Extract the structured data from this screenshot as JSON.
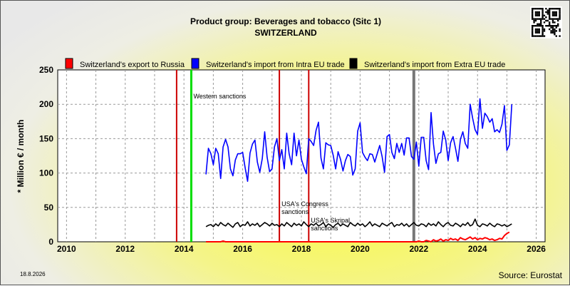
{
  "title": "Product group: Beverages and tobacco (Sitc 1)",
  "subtitle": "SWITZERLAND",
  "date_stamp": "18.8.2026",
  "source": "Source: Eurostat",
  "qr_icon": "qr-code-icon",
  "chart_data": {
    "type": "line",
    "title": "Product group: Beverages and tobacco (Sitc 1)",
    "subtitle": "SWITZERLAND",
    "ylabel": "* Million € / month",
    "xlabel": "",
    "xlim": [
      2009.7,
      2026.3
    ],
    "ylim": [
      0,
      250
    ],
    "x_ticks": [
      2010,
      2012,
      2014,
      2016,
      2018,
      2020,
      2022,
      2024,
      2026
    ],
    "y_ticks": [
      0,
      50,
      100,
      150,
      200,
      250
    ],
    "grid": true,
    "legend_position": "top",
    "series": [
      {
        "name": "Switzerland's export to Russia",
        "color": "#ff0000",
        "x_start": 2014.75,
        "x_step": 0.08333,
        "values": [
          0,
          0,
          0,
          0,
          0,
          0,
          0,
          1,
          0,
          0,
          0,
          0,
          0,
          0,
          0,
          0,
          0,
          0,
          0,
          0,
          0,
          0,
          0,
          0,
          0,
          0,
          0,
          0,
          0,
          0,
          0,
          0,
          0,
          0,
          0,
          0,
          0,
          0,
          0,
          0,
          0,
          0,
          0,
          0,
          0,
          0,
          0,
          0,
          0,
          0,
          0,
          0,
          0,
          0,
          0,
          0,
          0,
          0,
          0,
          0,
          0,
          0,
          0,
          0,
          0,
          0,
          0,
          0,
          0,
          0,
          0,
          0,
          0,
          0,
          0,
          0,
          0,
          0,
          0,
          0,
          0,
          0,
          0,
          0,
          0,
          0,
          0,
          1,
          0,
          0,
          2,
          1,
          0,
          3,
          1,
          2,
          4,
          1,
          3,
          2,
          5,
          3,
          4,
          2,
          6,
          4,
          3,
          5,
          7,
          4,
          6,
          3,
          5,
          4,
          6,
          5,
          3,
          4,
          2,
          3,
          5,
          4,
          9,
          12,
          14
        ]
      },
      {
        "name": "Switzerland's import from Intra EU trade",
        "color": "#0000ff",
        "x_start": 2014.75,
        "x_step": 0.08333,
        "values": [
          98,
          136,
          128,
          112,
          136,
          128,
          92,
          138,
          149,
          138,
          106,
          96,
          119,
          128,
          128,
          130,
          108,
          88,
          129,
          142,
          148,
          116,
          101,
          121,
          160,
          123,
          102,
          106,
          138,
          150,
          118,
          134,
          106,
          158,
          128,
          112,
          158,
          125,
          148,
          120,
          109,
          99,
          150,
          146,
          140,
          162,
          174,
          122,
          106,
          144,
          141,
          140,
          126,
          106,
          131,
          120,
          103,
          118,
          127,
          124,
          97,
          106,
          161,
          173,
          130,
          123,
          118,
          128,
          127,
          116,
          128,
          140,
          124,
          101,
          153,
          156,
          130,
          121,
          143,
          130,
          143,
          126,
          151,
          151,
          124,
          120,
          145,
          110,
          152,
          152,
          118,
          105,
          188,
          142,
          114,
          128,
          130,
          161,
          148,
          118,
          144,
          153,
          136,
          117,
          149,
          160,
          143,
          136,
          200,
          180,
          163,
          156,
          208,
          165,
          187,
          182,
          174,
          179,
          160,
          163,
          159,
          171,
          198,
          133,
          141,
          200
        ]
      },
      {
        "name": "Switzerland's import from Extra EU trade",
        "color": "#000000",
        "x_start": 2014.75,
        "x_step": 0.08333,
        "values": [
          22,
          24,
          25,
          22,
          26,
          23,
          28,
          25,
          23,
          27,
          24,
          21,
          26,
          28,
          22,
          25,
          24,
          29,
          23,
          26,
          24,
          27,
          22,
          25,
          28,
          26,
          23,
          27,
          24,
          25,
          22,
          26,
          23,
          28,
          25,
          22,
          27,
          24,
          26,
          23,
          29,
          25,
          22,
          26,
          24,
          27,
          23,
          25,
          28,
          22,
          26,
          24,
          21,
          25,
          27,
          23,
          26,
          24,
          22,
          28,
          25,
          23,
          27,
          24,
          26,
          22,
          25,
          29,
          23,
          26,
          24,
          22,
          27,
          25,
          23,
          26,
          28,
          22,
          25,
          24,
          27,
          23,
          26,
          22,
          25,
          28,
          24,
          23,
          26,
          25,
          22,
          27,
          24,
          26,
          23,
          29,
          25,
          22,
          26,
          28,
          24,
          23,
          27,
          25,
          22,
          26,
          24,
          28,
          23,
          25,
          33,
          24,
          22,
          26,
          25,
          23,
          27,
          24,
          22,
          26,
          25,
          23,
          25,
          22,
          24,
          26
        ]
      }
    ],
    "events": [
      {
        "x": 2013.75,
        "label": "",
        "color": "#cc0000",
        "width": 2
      },
      {
        "x": 2014.25,
        "label": "Western sanctions",
        "color": "#00dd00",
        "width": 3
      },
      {
        "x": 2017.25,
        "label": "USA's Congress sanctions",
        "color": "#cc0000",
        "width": 2
      },
      {
        "x": 2018.25,
        "label": "USA's Skripal sanctions",
        "color": "#cc0000",
        "width": 2
      },
      {
        "x": 2021.83,
        "label": "",
        "color": "#777777",
        "width": 4
      }
    ]
  }
}
